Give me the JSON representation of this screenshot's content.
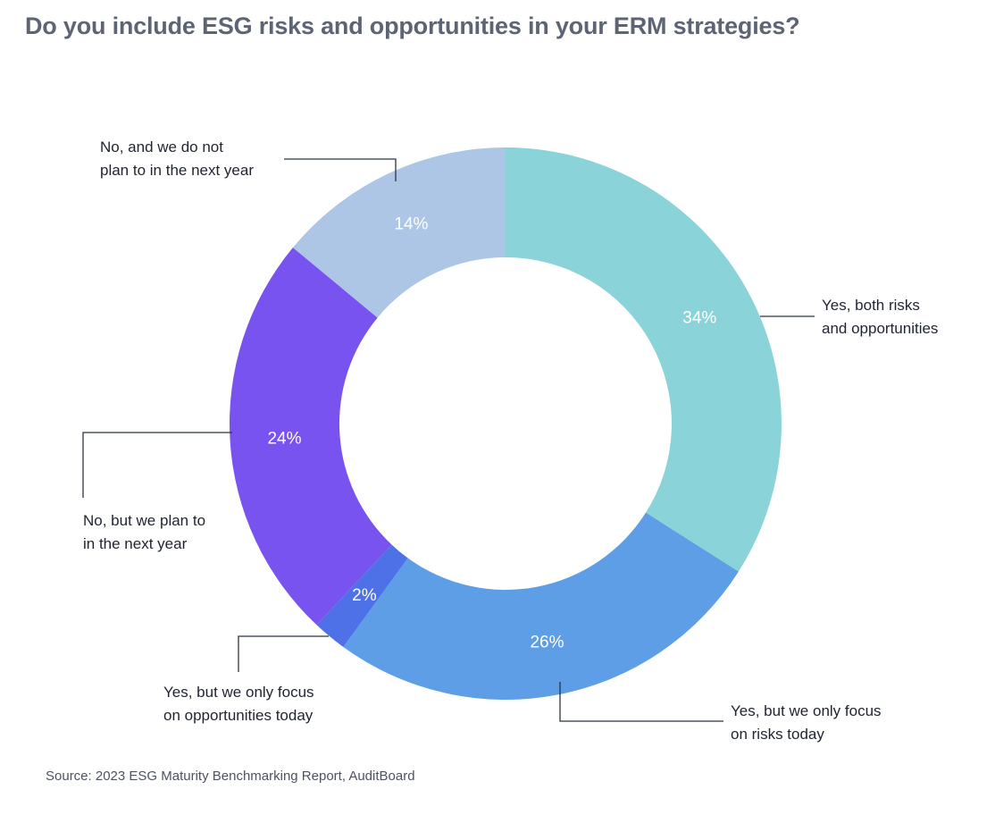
{
  "title": "Do you include ESG risks and opportunities in your ERM strategies?",
  "source": "Source: 2023 ESG Maturity Benchmarking Report, AuditBoard",
  "chart_data": {
    "type": "pie",
    "donut": true,
    "title": "Do you include ESG risks and opportunities in your ERM strategies?",
    "unit": "%",
    "slices": [
      {
        "label_lines": [
          "Yes, both risks",
          "and opportunities"
        ],
        "value": 34,
        "display": "34%",
        "color": "#8ad4d9"
      },
      {
        "label_lines": [
          "Yes, but we only focus",
          "on risks today"
        ],
        "value": 26,
        "display": "26%",
        "color": "#5e9ee6"
      },
      {
        "label_lines": [
          "Yes, but we only focus",
          "on opportunities today"
        ],
        "value": 2,
        "display": "2%",
        "color": "#4f71e8"
      },
      {
        "label_lines": [
          "No, but we plan to",
          "in the next year"
        ],
        "value": 24,
        "display": "24%",
        "color": "#7953ef"
      },
      {
        "label_lines": [
          "No, and we do not",
          "plan to in the next year"
        ],
        "value": 14,
        "display": "14%",
        "color": "#adc6e5"
      }
    ]
  }
}
